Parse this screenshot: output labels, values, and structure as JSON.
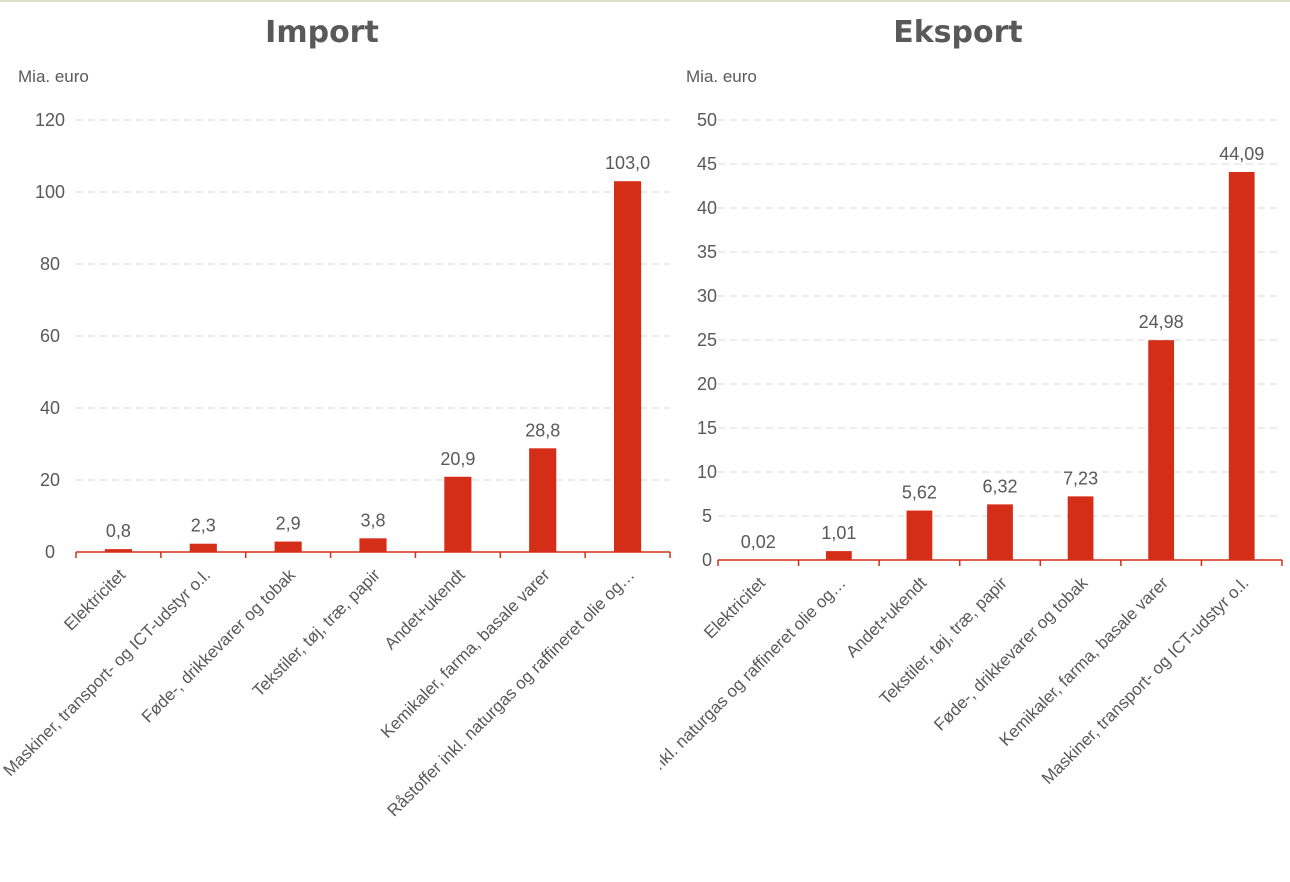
{
  "colors": {
    "bar": "#d52e18",
    "text": "#595959",
    "grid": "#d9d9d9",
    "axis": "#d52e18"
  },
  "chart_data": [
    {
      "type": "bar",
      "title": "Import",
      "ylabel": "Mia. euro",
      "xlabel": "",
      "ylim": [
        0,
        120
      ],
      "yticks": [
        0,
        20,
        40,
        60,
        80,
        100,
        120
      ],
      "grid": true,
      "categories": [
        "Elektricitet",
        "Maskiner, transport- og ICT-udstyr o.l.",
        "Føde-, drikkevarer og tobak",
        "Tekstiler, tøj, træ, papir",
        "Andet+ukendt",
        "Kemikaler, farma, basale varer",
        "Råstoffer inkl. naturgas og raffineret olie og…"
      ],
      "values": [
        0.8,
        2.3,
        2.9,
        3.8,
        20.9,
        28.8,
        103.0
      ],
      "data_labels": [
        "0,8",
        "2,3",
        "2,9",
        "3,8",
        "20,9",
        "28,8",
        "103,0"
      ]
    },
    {
      "type": "bar",
      "title": "Eksport",
      "ylabel": "Mia. euro",
      "xlabel": "",
      "ylim": [
        0,
        50
      ],
      "yticks": [
        0,
        5,
        10,
        15,
        20,
        25,
        30,
        35,
        40,
        45,
        50
      ],
      "grid": true,
      "categories": [
        "Elektricitet",
        "Råstoffer inkl. naturgas og raffineret olie og…",
        "Andet+ukendt",
        "Tekstiler, tøj, træ, papir",
        "Føde-, drikkevarer og tobak",
        "Kemikaler, farma, basale varer",
        "Maskiner, transport- og ICT-udstyr o.l."
      ],
      "values": [
        0.02,
        1.01,
        5.62,
        6.32,
        7.23,
        24.98,
        44.09
      ],
      "data_labels": [
        "0,02",
        "1,01",
        "5,62",
        "6,32",
        "7,23",
        "24,98",
        "44,09"
      ]
    }
  ]
}
